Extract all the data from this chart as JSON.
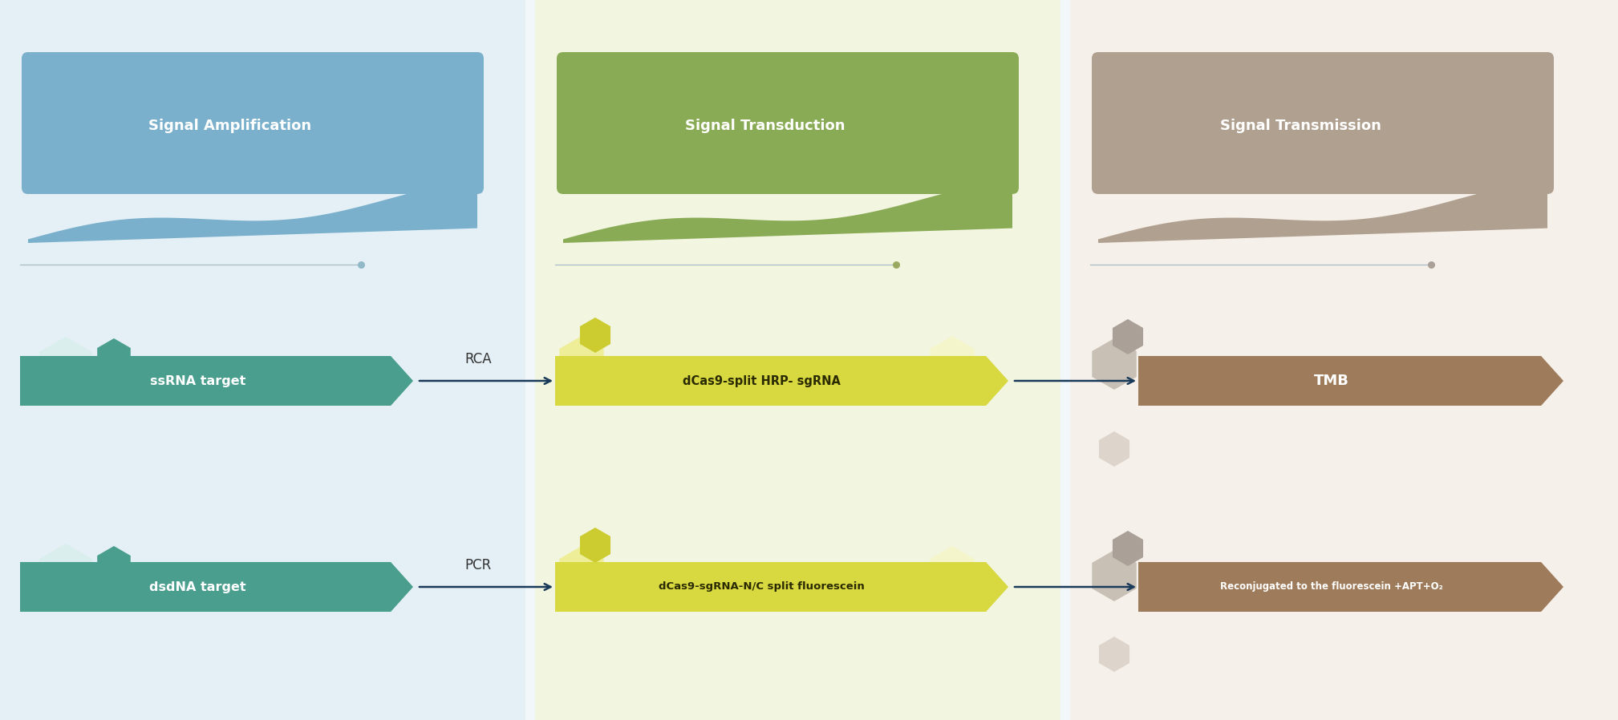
{
  "bg_color": "#f2f7fa",
  "panel1_bg": "#e4f0f5",
  "panel2_bg": "#f2f5e0",
  "panel3_bg": "#f5f0ea",
  "panel1_color": "#7ab0cc",
  "panel2_color": "#8aab55",
  "panel3_color": "#b0a090",
  "teal_dark": "#4a9e8e",
  "teal_light": "#c5e0dc",
  "teal_lighter": "#daeeed",
  "yellow_dark": "#cccc30",
  "yellow_mid": "#d8d840",
  "yellow_light": "#eeee99",
  "yellow_lighter": "#f5f5cc",
  "brown_dark": "#9e7b5a",
  "gray_dark": "#aaa098",
  "gray_mid": "#c8bfb5",
  "gray_light": "#ddd5cc",
  "arrow_color": "#1a3a5a",
  "line_color": "#aabbc8",
  "dot1": "#90b8c8",
  "dot2": "#99aa60",
  "dot3": "#aaa098",
  "title1": "Signal Amplification",
  "title2": "Signal Transduction",
  "title3": "Signal Transmission",
  "label_ssrna": "ssRNA target",
  "label_dsdna": "dsdNA target",
  "label_hrp": "dCas9-split HRP- sgRNA",
  "label_fluor": "dCas9-sgRNA-N/C split fluorescein",
  "label_tmb": "TMB",
  "label_reconj": "Reconjugated to the fluorescein +APT+O₂",
  "rca": "RCA",
  "pcr": "PCR"
}
